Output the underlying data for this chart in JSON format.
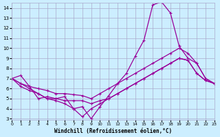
{
  "xlabel": "Windchill (Refroidissement éolien,°C)",
  "ylabel": "",
  "xlim": [
    0,
    23
  ],
  "ylim": [
    3,
    14.5
  ],
  "xticks": [
    0,
    1,
    2,
    3,
    4,
    5,
    6,
    7,
    8,
    9,
    10,
    11,
    12,
    13,
    14,
    15,
    16,
    17,
    18,
    19,
    20,
    21,
    22,
    23
  ],
  "yticks": [
    3,
    4,
    5,
    6,
    7,
    8,
    9,
    10,
    11,
    12,
    13,
    14
  ],
  "background_color": "#cceeff",
  "grid_color": "#aaaacc",
  "line_color": "#990099",
  "line1_x": [
    0,
    1,
    2,
    3,
    4,
    5,
    6,
    7,
    8,
    9,
    10,
    11,
    12,
    13,
    14,
    15,
    16,
    17,
    18,
    19,
    20,
    21,
    22,
    23
  ],
  "line1_y": [
    7.0,
    7.3,
    6.2,
    5.0,
    5.2,
    5.0,
    5.2,
    4.0,
    4.2,
    3.0,
    4.2,
    5.3,
    6.5,
    7.5,
    9.2,
    10.8,
    14.3,
    14.6,
    13.5,
    10.2,
    9.0,
    8.5,
    7.0,
    6.5
  ],
  "line2_x": [
    0,
    1,
    2,
    3,
    4,
    5,
    6,
    7,
    8,
    9,
    10,
    11,
    12,
    13,
    14,
    15,
    16,
    17,
    18,
    19,
    20,
    21,
    22,
    23
  ],
  "line2_y": [
    7.0,
    6.5,
    6.2,
    6.0,
    5.8,
    5.5,
    5.5,
    5.4,
    5.3,
    5.0,
    5.5,
    6.0,
    6.5,
    7.0,
    7.5,
    8.0,
    8.5,
    9.0,
    9.5,
    10.0,
    9.5,
    8.5,
    7.0,
    6.5
  ],
  "line3_x": [
    0,
    1,
    2,
    3,
    4,
    5,
    6,
    7,
    8,
    9,
    10,
    11,
    12,
    13,
    14,
    15,
    16,
    17,
    18,
    19,
    20,
    21,
    22,
    23
  ],
  "line3_y": [
    7.0,
    6.2,
    5.8,
    5.5,
    5.0,
    5.0,
    4.8,
    4.8,
    4.8,
    4.5,
    4.8,
    5.0,
    5.5,
    6.0,
    6.5,
    7.0,
    7.5,
    8.0,
    8.5,
    9.0,
    8.8,
    7.5,
    6.8,
    6.5
  ],
  "line4_x": [
    0,
    1,
    2,
    3,
    4,
    5,
    6,
    7,
    8,
    9,
    10,
    11,
    12,
    13,
    14,
    15,
    16,
    17,
    18,
    19,
    20,
    21,
    22,
    23
  ],
  "line4_y": [
    7.0,
    6.5,
    6.0,
    5.5,
    5.0,
    4.8,
    4.5,
    4.0,
    3.2,
    4.0,
    4.5,
    5.0,
    5.5,
    6.0,
    6.5,
    7.0,
    7.5,
    8.0,
    8.5,
    9.0,
    8.8,
    7.5,
    6.8,
    6.5
  ]
}
